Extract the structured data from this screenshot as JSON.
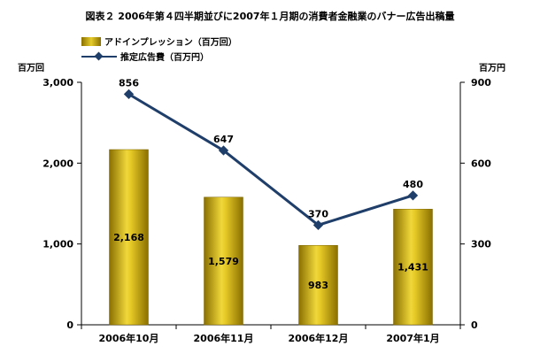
{
  "title": "図表２ 2006年第４四半期並びに2007年１月期の消費者金融業のバナー広告出稿量",
  "legend": {
    "bar_label": "アドインプレッション（百万回）",
    "line_label": "推定広告費（百万円）"
  },
  "left_unit": "百万回",
  "right_unit": "百万円",
  "colors": {
    "bar": "#c9a80f",
    "line": "#1f3e69"
  },
  "chart_data": {
    "type": "bar",
    "categories": [
      "2006年10月",
      "2006年11月",
      "2006年12月",
      "2007年1月"
    ],
    "series": [
      {
        "name": "アドインプレッション（百万回）",
        "type": "bar",
        "axis": "left",
        "values": [
          2168,
          1579,
          983,
          1431
        ],
        "value_labels": [
          "2,168",
          "1,579",
          "983",
          "1,431"
        ]
      },
      {
        "name": "推定広告費（百万円）",
        "type": "line",
        "axis": "right",
        "values": [
          856,
          647,
          370,
          480
        ],
        "value_labels": [
          "856",
          "647",
          "370",
          "480"
        ]
      }
    ],
    "ylim_left": [
      0,
      3000
    ],
    "ylim_right": [
      0,
      900
    ],
    "yticks_left": [
      "0",
      "1,000",
      "2,000",
      "3,000"
    ],
    "yticks_right": [
      "0",
      "300",
      "600",
      "900"
    ],
    "grid": false,
    "legend_position": "top-left"
  }
}
